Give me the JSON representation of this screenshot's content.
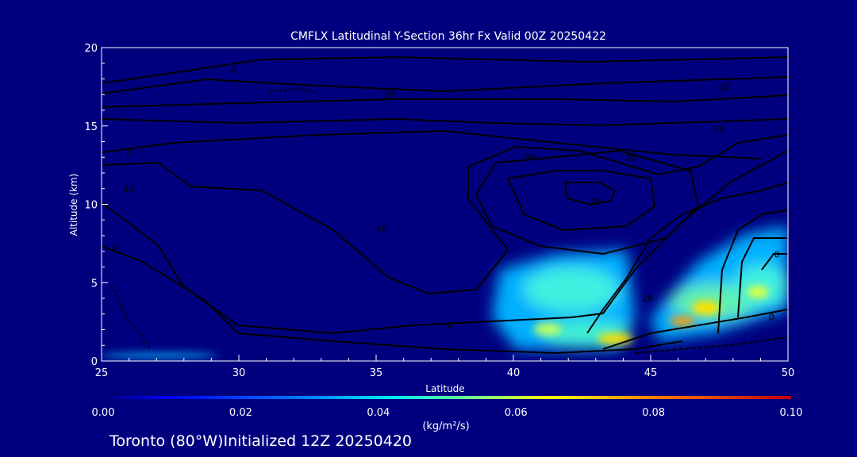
{
  "chart_data": {
    "type": "heatmap",
    "title": "CMFLX Latitudinal Y-Section 36hr  Fx Valid 00Z 20250422",
    "xlabel": "Latitude",
    "ylabel": "Altitude (km)",
    "xlim": [
      25,
      50
    ],
    "ylim": [
      0,
      20
    ],
    "xticks": [
      "25",
      "30",
      "35",
      "40",
      "45",
      "50"
    ],
    "yticks": [
      "0",
      "5",
      "10",
      "15",
      "20"
    ],
    "colorbar": {
      "label": "(kg/m²/s)",
      "range": [
        0.0,
        0.1
      ],
      "ticks": [
        "0.00",
        "0.02",
        "0.04",
        "0.06",
        "0.08",
        "0.10"
      ],
      "colors": [
        "#000080",
        "#0000ff",
        "#00a0ff",
        "#00f0f0",
        "#80ff80",
        "#ffff00",
        "#ff8000",
        "#c00000"
      ]
    },
    "flux_regions": [
      {
        "lat": 42.5,
        "alt": 4.5,
        "value": 0.045
      },
      {
        "lat": 43.5,
        "alt": 1.4,
        "value": 0.06
      },
      {
        "lat": 41.5,
        "alt": 2.0,
        "value": 0.055
      },
      {
        "lat": 47.0,
        "alt": 3.3,
        "value": 0.065
      },
      {
        "lat": 45.8,
        "alt": 2.5,
        "value": 0.07
      },
      {
        "lat": 49.0,
        "alt": 5.0,
        "value": 0.05
      },
      {
        "lat": 26.5,
        "alt": 0.3,
        "value": 0.03
      }
    ],
    "contour_labels": [
      {
        "text": "0",
        "lat": 29.8,
        "alt": 18.6
      },
      {
        "text": "20",
        "lat": 35.5,
        "alt": 17.0
      },
      {
        "text": "10",
        "lat": 47.7,
        "alt": 17.5
      },
      {
        "text": "20",
        "lat": 47.5,
        "alt": 14.8
      },
      {
        "text": "20",
        "lat": 44.3,
        "alt": 13.0
      },
      {
        "text": "30",
        "lat": 40.6,
        "alt": 13.0
      },
      {
        "text": "40",
        "lat": 43.0,
        "alt": 10.2
      },
      {
        "text": "0",
        "lat": 26.0,
        "alt": 13.3
      },
      {
        "text": "10",
        "lat": 26.0,
        "alt": 11.0
      },
      {
        "text": "0",
        "lat": 25.5,
        "alt": 7.3
      },
      {
        "text": "10",
        "lat": 35.2,
        "alt": 8.4
      },
      {
        "text": "0",
        "lat": 37.7,
        "alt": 2.3
      },
      {
        "text": "20",
        "lat": 44.9,
        "alt": 4.0
      },
      {
        "text": "0",
        "lat": 49.6,
        "alt": 6.8
      },
      {
        "text": "0",
        "lat": 49.4,
        "alt": 2.8
      }
    ]
  },
  "footer": "Toronto (80°W)Initialized 12Z 20250420"
}
